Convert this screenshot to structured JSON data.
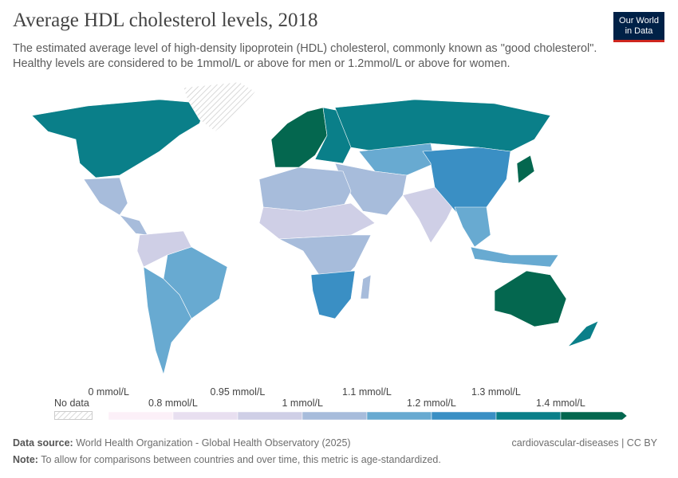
{
  "header": {
    "title": "Average HDL cholesterol levels, 2018",
    "subtitle": "The estimated average level of high-density lipoprotein (HDL) cholesterol, commonly known as \"good cholesterol\". Healthy levels are considered to be 1mmol/L or above for men or 1.2mmol/L or above for women.",
    "logo": "Our World in Data"
  },
  "legend": {
    "no_data": "No data",
    "bins": [
      {
        "color": "#fcf0f8"
      },
      {
        "color": "#e8dff0"
      },
      {
        "color": "#cfcfe6"
      },
      {
        "color": "#a7bcdb"
      },
      {
        "color": "#68aad1"
      },
      {
        "color": "#3a8fc4"
      },
      {
        "color": "#0a7f89"
      },
      {
        "color": "#04674f"
      }
    ],
    "labels_top": [
      "0 mmol/L",
      "0.95 mmol/L",
      "1.1 mmol/L",
      "1.3 mmol/L"
    ],
    "labels_bottom": [
      "0.8 mmol/L",
      "1 mmol/L",
      "1.2 mmol/L",
      "1.4 mmol/L"
    ]
  },
  "map_regions": [
    {
      "region": "North America",
      "bin": 6
    },
    {
      "region": "Greenland",
      "bin": -1
    },
    {
      "region": "Mexico",
      "bin": 3
    },
    {
      "region": "Central America",
      "bin": 3
    },
    {
      "region": "South America North",
      "bin": 2
    },
    {
      "region": "Brazil",
      "bin": 4
    },
    {
      "region": "South America South",
      "bin": 4
    },
    {
      "region": "Western Europe",
      "bin": 7
    },
    {
      "region": "Eastern Europe",
      "bin": 6
    },
    {
      "region": "Russia",
      "bin": 6
    },
    {
      "region": "Central Asia",
      "bin": 4
    },
    {
      "region": "Middle East",
      "bin": 3
    },
    {
      "region": "North Africa",
      "bin": 3
    },
    {
      "region": "Sahel",
      "bin": 2
    },
    {
      "region": "Central Africa",
      "bin": 3
    },
    {
      "region": "Southern Africa",
      "bin": 5
    },
    {
      "region": "India",
      "bin": 2
    },
    {
      "region": "China",
      "bin": 5
    },
    {
      "region": "Southeast Asia",
      "bin": 4
    },
    {
      "region": "Japan",
      "bin": 7
    },
    {
      "region": "Australia",
      "bin": 7
    },
    {
      "region": "New Zealand",
      "bin": 6
    },
    {
      "region": "Indonesia",
      "bin": 4
    },
    {
      "region": "Madagascar",
      "bin": 3
    }
  ],
  "footer": {
    "source_label": "Data source:",
    "source": "World Health Organization - Global Health Observatory (2025)",
    "note_label": "Note:",
    "note": "To allow for comparisons between countries and over time, this metric is age-standardized.",
    "right": "cardiovascular-diseases | CC BY"
  }
}
